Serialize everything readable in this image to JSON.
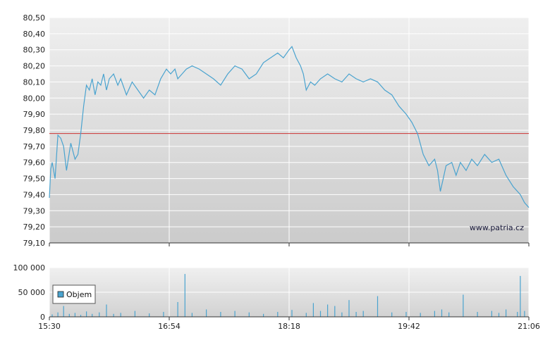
{
  "chart_data": [
    {
      "type": "line",
      "title": "",
      "xlabel": "",
      "ylabel": "",
      "x_ticks": [
        "15:30",
        "16:54",
        "18:18",
        "19:42",
        "21:06"
      ],
      "x_range": [
        "15:30",
        "21:06"
      ],
      "y_ticks": [
        "80,50",
        "80,40",
        "80,30",
        "80,20",
        "80,10",
        "80,00",
        "79,90",
        "79,80",
        "79,70",
        "79,60",
        "79,50",
        "79,40",
        "79,30",
        "79,20",
        "79,10"
      ],
      "ylim": [
        79.1,
        80.5
      ],
      "reference_line": 79.78,
      "reference_color": "#cc3333",
      "line_color": "#4aa3cf",
      "grid": true,
      "watermark": "www.patria.cz",
      "series": [
        {
          "x": [
            "15:30",
            "15:31",
            "15:32",
            "15:34",
            "15:36",
            "15:38",
            "15:40",
            "15:42",
            "15:45",
            "15:48",
            "15:50",
            "15:52",
            "15:54",
            "15:56",
            "15:58",
            "16:00",
            "16:02",
            "16:04",
            "16:06",
            "16:08",
            "16:10",
            "16:12",
            "16:15",
            "16:18",
            "16:20",
            "16:24",
            "16:28",
            "16:32",
            "16:36",
            "16:40",
            "16:44",
            "16:48",
            "16:52",
            "16:55",
            "16:58",
            "17:00",
            "17:03",
            "17:06",
            "17:10",
            "17:15",
            "17:20",
            "17:25",
            "17:30",
            "17:35",
            "17:40",
            "17:45",
            "17:50",
            "17:55",
            "18:00",
            "18:05",
            "18:10",
            "18:14",
            "18:18",
            "18:20",
            "18:23",
            "18:26",
            "18:28",
            "18:30",
            "18:33",
            "18:36",
            "18:40",
            "18:45",
            "18:50",
            "18:55",
            "19:00",
            "19:05",
            "19:10",
            "19:15",
            "19:20",
            "19:25",
            "19:30",
            "19:35",
            "19:40",
            "19:44",
            "19:48",
            "19:52",
            "19:56",
            "20:00",
            "20:02",
            "20:04",
            "20:06",
            "20:08",
            "20:12",
            "20:15",
            "20:18",
            "20:22",
            "20:26",
            "20:30",
            "20:35",
            "20:40",
            "20:45",
            "20:50",
            "20:55",
            "21:00",
            "21:03",
            "21:06"
          ],
          "y": [
            79.38,
            79.56,
            79.6,
            79.5,
            79.77,
            79.75,
            79.7,
            79.55,
            79.72,
            79.62,
            79.65,
            79.78,
            79.95,
            80.08,
            80.05,
            80.12,
            80.02,
            80.1,
            80.08,
            80.15,
            80.05,
            80.12,
            80.15,
            80.08,
            80.12,
            80.02,
            80.1,
            80.05,
            80.0,
            80.05,
            80.02,
            80.12,
            80.18,
            80.15,
            80.18,
            80.12,
            80.15,
            80.18,
            80.2,
            80.18,
            80.15,
            80.12,
            80.08,
            80.15,
            80.2,
            80.18,
            80.12,
            80.15,
            80.22,
            80.25,
            80.28,
            80.25,
            80.3,
            80.32,
            80.25,
            80.2,
            80.15,
            80.05,
            80.1,
            80.08,
            80.12,
            80.15,
            80.12,
            80.1,
            80.15,
            80.12,
            80.1,
            80.12,
            80.1,
            80.05,
            80.02,
            79.95,
            79.9,
            79.85,
            79.78,
            79.65,
            79.58,
            79.62,
            79.55,
            79.42,
            79.5,
            79.58,
            79.6,
            79.52,
            79.6,
            79.55,
            79.62,
            79.58,
            79.65,
            79.6,
            79.62,
            79.52,
            79.45,
            79.4,
            79.35,
            79.32
          ]
        }
      ]
    },
    {
      "type": "bar",
      "title": "",
      "xlabel": "",
      "ylabel": "",
      "y_ticks": [
        "100 000",
        "50 000",
        "0"
      ],
      "ylim": [
        0,
        100000
      ],
      "legend": "Objem",
      "legend_placement": "top-left",
      "bar_color": "#4aa3cf",
      "series": [
        {
          "name": "Objem",
          "x": [
            "15:32",
            "15:36",
            "15:40",
            "15:44",
            "15:48",
            "15:52",
            "15:56",
            "16:00",
            "16:05",
            "16:10",
            "16:15",
            "16:20",
            "16:30",
            "16:40",
            "16:50",
            "17:00",
            "17:05",
            "17:10",
            "17:20",
            "17:30",
            "17:40",
            "17:50",
            "18:00",
            "18:10",
            "18:20",
            "18:30",
            "18:35",
            "18:40",
            "18:45",
            "18:50",
            "18:55",
            "19:00",
            "19:05",
            "19:10",
            "19:20",
            "19:30",
            "19:40",
            "19:50",
            "20:00",
            "20:05",
            "20:10",
            "20:20",
            "20:30",
            "20:40",
            "20:45",
            "20:50",
            "20:58",
            "21:00",
            "21:03"
          ],
          "y": [
            5000,
            9000,
            22000,
            6000,
            8000,
            4000,
            11000,
            6000,
            9000,
            25000,
            6000,
            8000,
            12000,
            7000,
            10000,
            30000,
            87000,
            8000,
            15000,
            10000,
            12000,
            9000,
            6000,
            10000,
            14000,
            8000,
            28000,
            12000,
            25000,
            22000,
            9000,
            34000,
            10000,
            12000,
            42000,
            9000,
            10000,
            8000,
            12000,
            15000,
            9000,
            45000,
            10000,
            12000,
            8000,
            15000,
            10000,
            83000,
            12000
          ]
        }
      ]
    }
  ]
}
